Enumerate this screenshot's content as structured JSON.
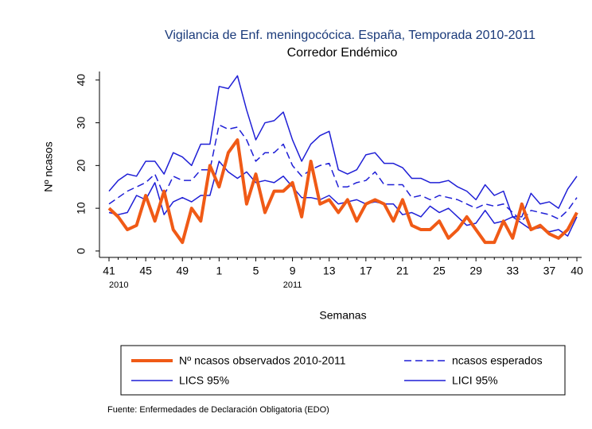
{
  "chart_data": {
    "type": "line",
    "title": "Vigilancia de Enf. meningocócica. España, Temporada 2010-2011",
    "subtitle": "Corredor Endémico",
    "y_label": "Nº ncasos",
    "x_label": "Semanas",
    "source": "Fuente: Enfermedades de Declaración Obligatoria (EDO)",
    "categories": [
      "41",
      null,
      null,
      null,
      "45",
      null,
      null,
      null,
      "49",
      null,
      null,
      null,
      "1",
      null,
      null,
      null,
      "5",
      null,
      null,
      null,
      "9",
      null,
      null,
      null,
      "13",
      null,
      null,
      null,
      "17",
      null,
      null,
      null,
      "21",
      null,
      null,
      null,
      "25",
      null,
      null,
      null,
      "29",
      null,
      null,
      null,
      "33",
      null,
      null,
      null,
      "37",
      null,
      null,
      "40"
    ],
    "categories2": [
      "2010",
      null,
      null,
      null,
      null,
      null,
      null,
      null,
      null,
      null,
      null,
      null,
      null,
      null,
      null,
      null,
      null,
      null,
      null,
      null,
      "2011",
      null,
      null,
      null,
      null,
      null,
      null,
      null,
      null,
      null,
      null,
      null,
      null,
      null,
      null,
      null,
      null,
      null,
      null,
      null,
      null,
      null,
      null,
      null,
      null,
      null,
      null,
      null,
      null,
      null,
      null,
      null
    ],
    "ylim": [
      -1.5,
      42
    ],
    "yticks": [
      0,
      10,
      20,
      30,
      40
    ],
    "series": [
      {
        "name": "Nº ncasos observados 2010-2011",
        "color": "#f05a16",
        "style": "solid",
        "linewidth": 4,
        "values": [
          10,
          8,
          5,
          6,
          13,
          7,
          14,
          5,
          2,
          10,
          7,
          20,
          15,
          23,
          26,
          11,
          18,
          9,
          14,
          14,
          16,
          8,
          21,
          11,
          12,
          9,
          12,
          7,
          11,
          12,
          11,
          7,
          12,
          6,
          5,
          5,
          7,
          3,
          5,
          8,
          5,
          2,
          2,
          7,
          3,
          11,
          5,
          6,
          4,
          3,
          5,
          9
        ]
      },
      {
        "name": "ncasos esperados",
        "color": "#1f1fd6",
        "style": "dashed",
        "linewidth": 1.5,
        "values": [
          11,
          12.5,
          14,
          15,
          16,
          18,
          13,
          17.5,
          16.5,
          16.5,
          19,
          19,
          29.5,
          28.5,
          29,
          26,
          21,
          23,
          23,
          25,
          20,
          17.5,
          19,
          20,
          20.5,
          15,
          15,
          16,
          16.5,
          18.5,
          15.5,
          15.5,
          15.5,
          12.5,
          13,
          12,
          13,
          12.5,
          12,
          11,
          10,
          11,
          10.5,
          11,
          9,
          7,
          9.5,
          9,
          8.5,
          7.5,
          9.5,
          12.5
        ]
      },
      {
        "name": "LICS 95%",
        "color": "#1f1fd6",
        "style": "solid",
        "linewidth": 1.5,
        "values": [
          14,
          16.5,
          18,
          17.5,
          21,
          21,
          18,
          23,
          22,
          20,
          25,
          25,
          38.5,
          38,
          41,
          33,
          26,
          30,
          30.5,
          32.5,
          26,
          21,
          25,
          27,
          28,
          19,
          18,
          19,
          22.5,
          23,
          20.5,
          20.5,
          19.5,
          17,
          17,
          16,
          16,
          16.5,
          15,
          14,
          12,
          15.5,
          13,
          14,
          8,
          8,
          13.5,
          11,
          11.5,
          10,
          14.5,
          17.5
        ]
      },
      {
        "name": "LICI 95%",
        "color": "#1f1fd6",
        "style": "solid",
        "linewidth": 1.5,
        "values": [
          9,
          8.5,
          9,
          13,
          12,
          16,
          8.5,
          11.5,
          12.5,
          11.5,
          13,
          13,
          21,
          18.5,
          17,
          18.5,
          16,
          16.5,
          16,
          17.5,
          15,
          12.5,
          12.5,
          12,
          13,
          11,
          11.5,
          12,
          11,
          11.5,
          11,
          11,
          8.5,
          9,
          8,
          10.5,
          9,
          10,
          8,
          6,
          6.5,
          9.5,
          6.5,
          7,
          8,
          6.5,
          5,
          5.5,
          4.5,
          5,
          3.5,
          8
        ]
      }
    ]
  }
}
